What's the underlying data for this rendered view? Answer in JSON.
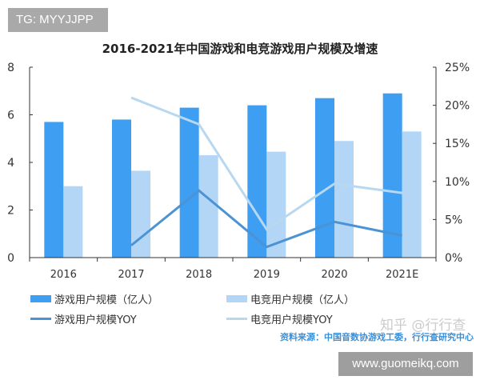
{
  "watermark_top": "TG: MYYJJPP",
  "watermark_site": "www.guomeikq.com",
  "watermark_zhihu": "知乎 @行行查",
  "source": "资料来源：中国音数协游戏工委，行行查研究中心",
  "chart_data": {
    "type": "bar",
    "title": "2016-2021年中国游戏和电竞游戏用户规模及增速",
    "categories": [
      "2016",
      "2017",
      "2018",
      "2019",
      "2020",
      "2021E"
    ],
    "ylim": [
      0,
      8
    ],
    "yticks": [
      "0",
      "2",
      "4",
      "6",
      "8"
    ],
    "y2lim": [
      0,
      25
    ],
    "y2ticks": [
      "0%",
      "5%",
      "10%",
      "15%",
      "20%",
      "25%"
    ],
    "legend_placement": "bottom",
    "series": [
      {
        "name": "游戏用户规模（亿人）",
        "type": "bar",
        "axis": "left",
        "color": "#3d9ef2",
        "values": [
          5.7,
          5.8,
          6.3,
          6.4,
          6.7,
          6.9
        ]
      },
      {
        "name": "电竞用户规模（亿人）",
        "type": "bar",
        "axis": "left",
        "color": "#b3d6f7",
        "values": [
          3.0,
          3.65,
          4.3,
          4.45,
          4.9,
          5.3
        ]
      },
      {
        "name": "游戏用户规模YOY",
        "type": "line",
        "axis": "right",
        "color": "#4b93d4",
        "values": [
          null,
          1.6,
          8.8,
          1.4,
          4.7,
          2.9
        ]
      },
      {
        "name": "电竞用户规模YOY",
        "type": "line",
        "axis": "right",
        "color": "#b8d8f0",
        "values": [
          null,
          21.0,
          17.5,
          3.7,
          9.7,
          8.5
        ]
      }
    ]
  }
}
